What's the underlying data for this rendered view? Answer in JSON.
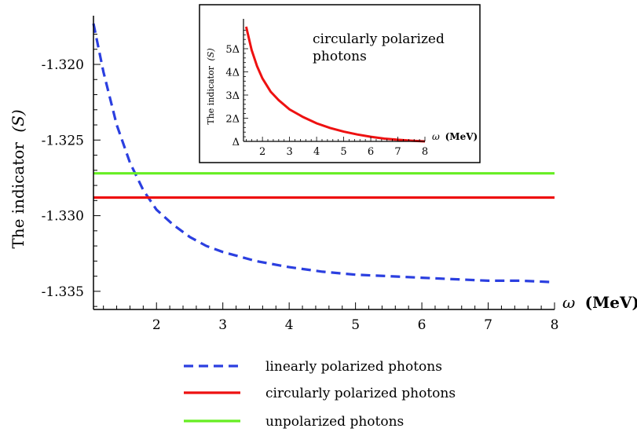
{
  "chart_data": [
    {
      "type": "line",
      "ylabel": "The indicator",
      "ylabel_symbol": "(S)",
      "xlabel": "ω",
      "xlabel_unit": "(MeV)",
      "xlim": [
        1.05,
        8
      ],
      "ylim": [
        -1.3362,
        -1.3173
      ],
      "xticks": [
        2,
        3,
        4,
        5,
        6,
        7,
        8
      ],
      "yticks": [
        -1.32,
        -1.325,
        -1.33,
        -1.335
      ],
      "ytick_labels": [
        "-1.320",
        "-1.325",
        "-1.330",
        "-1.335"
      ],
      "legend_position": "bottom",
      "series": [
        {
          "name": "linearly polarized photons",
          "style": "dashed",
          "color": "#2b3fe0",
          "x": [
            1.05,
            1.2,
            1.4,
            1.6,
            1.8,
            2.0,
            2.25,
            2.5,
            2.75,
            3.0,
            3.5,
            4.0,
            4.5,
            5.0,
            5.5,
            6.0,
            6.5,
            7.0,
            7.5,
            8.0
          ],
          "y": [
            -1.3173,
            -1.3205,
            -1.324,
            -1.3265,
            -1.3283,
            -1.3296,
            -1.3306,
            -1.3314,
            -1.332,
            -1.3324,
            -1.333,
            -1.3334,
            -1.3337,
            -1.3339,
            -1.334,
            -1.3341,
            -1.3342,
            -1.3343,
            -1.3343,
            -1.3344
          ]
        },
        {
          "name": "circularly polarized photons",
          "style": "solid",
          "color": "#ee1111",
          "x": [
            1.05,
            8
          ],
          "y": [
            -1.3288,
            -1.3288
          ]
        },
        {
          "name": "unpolarized photons",
          "style": "solid",
          "color": "#66ee22",
          "x": [
            1.05,
            8
          ],
          "y": [
            -1.3272,
            -1.3272
          ]
        }
      ]
    },
    {
      "type": "line",
      "title": "circularly polarized photons",
      "ylabel": "The indicator",
      "ylabel_symbol": "(S)",
      "xlabel": "ω",
      "xlabel_unit": "(MeV)",
      "xlim": [
        1.3,
        8
      ],
      "ylim": [
        1,
        6
      ],
      "xticks": [
        2,
        3,
        4,
        5,
        6,
        7,
        8
      ],
      "yticks": [
        1,
        2,
        3,
        4,
        5
      ],
      "ytick_labels": [
        "Δ",
        "2Δ",
        "3Δ",
        "4Δ",
        "5Δ"
      ],
      "series": [
        {
          "name": "circularly polarized photons",
          "style": "solid",
          "color": "#ee1111",
          "x": [
            1.4,
            1.6,
            1.8,
            2.0,
            2.3,
            2.6,
            3.0,
            3.5,
            4.0,
            4.5,
            5.0,
            5.5,
            6.0,
            6.5,
            7.0,
            7.5,
            8.0
          ],
          "y": [
            5.95,
            4.95,
            4.25,
            3.72,
            3.15,
            2.78,
            2.38,
            2.05,
            1.78,
            1.58,
            1.42,
            1.3,
            1.2,
            1.12,
            1.07,
            1.03,
            1.0
          ]
        }
      ]
    }
  ]
}
